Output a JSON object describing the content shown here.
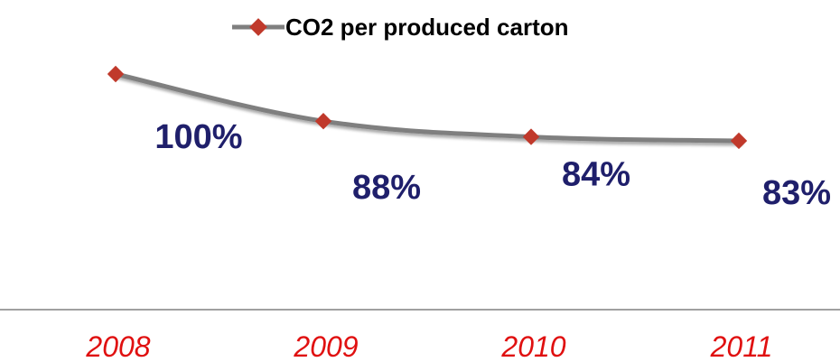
{
  "chart_data": {
    "type": "line",
    "categories": [
      "2008",
      "2009",
      "2010",
      "2011"
    ],
    "series": [
      {
        "name": "CO2 per produced carton",
        "values": [
          100,
          88,
          84,
          83
        ],
        "labels": [
          "100%",
          "88%",
          "84%",
          "83%"
        ]
      }
    ],
    "title": "",
    "xlabel": "",
    "ylabel": "",
    "legend": "top-center",
    "grid": false,
    "colors": {
      "line": "#7f7f7f",
      "marker": "#c0392b",
      "data_label": "#1f1f6b",
      "tick_label": "#e01010",
      "axis": "#808080"
    }
  }
}
